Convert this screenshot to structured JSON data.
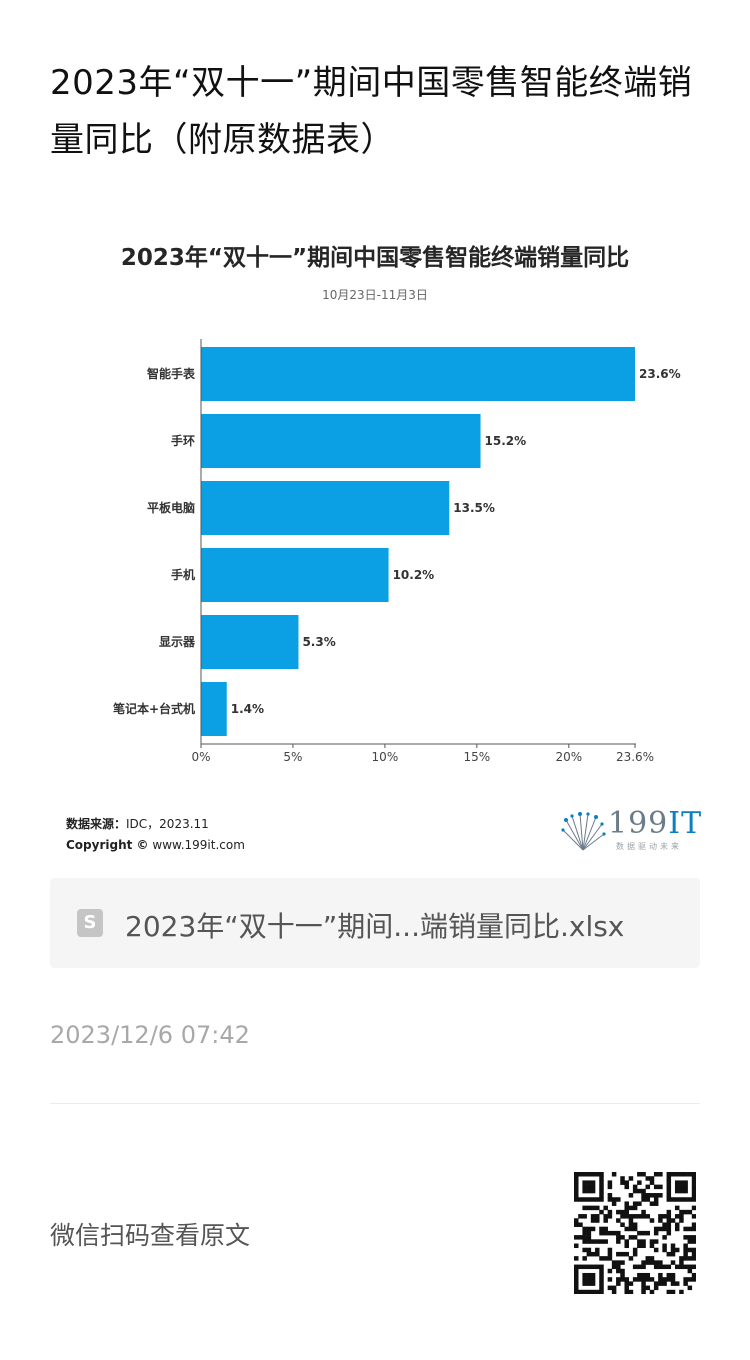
{
  "article": {
    "title": "2023年“双十一”期间中国零售智能终端销量同比（附原数据表）"
  },
  "chart_data": {
    "type": "bar",
    "orientation": "horizontal",
    "title": "2023年“双十一”期间中国零售智能终端销量同比",
    "subtitle": "10月23日-11月3日",
    "categories": [
      "智能手表",
      "手环",
      "平板电脑",
      "手机",
      "显示器",
      "笔记本+台式机"
    ],
    "values": [
      23.6,
      15.2,
      13.5,
      10.2,
      5.3,
      1.4
    ],
    "data_labels": [
      "23.6%",
      "15.2%",
      "13.5%",
      "10.2%",
      "5.3%",
      "1.4%"
    ],
    "xticks": [
      "0%",
      "5%",
      "10%",
      "15%",
      "20%",
      "23.6%"
    ],
    "xtick_values": [
      0,
      5,
      10,
      15,
      20,
      23.6
    ],
    "xlim": [
      0,
      23.6
    ],
    "bar_color": "#0aa0e3",
    "grid": false,
    "legend": false
  },
  "source": {
    "label": "数据来源：",
    "value": "IDC，2023.11",
    "copyright_label": "Copyright ©",
    "copyright_value": "www.199it.com"
  },
  "brand": {
    "name": "199",
    "name_accent": "IT",
    "tagline": "数据驱动未来",
    "icon": "dandelion-logo-icon"
  },
  "file_card": {
    "icon": "file-document-icon",
    "icon_letter": "S",
    "name": "2023年“双十一”期间...端销量同比.xlsx"
  },
  "meta": {
    "timestamp": "2023/12/6 07:42"
  },
  "footer": {
    "scan_text": "微信扫码查看原文",
    "qr_icon": "qr-code-icon"
  }
}
